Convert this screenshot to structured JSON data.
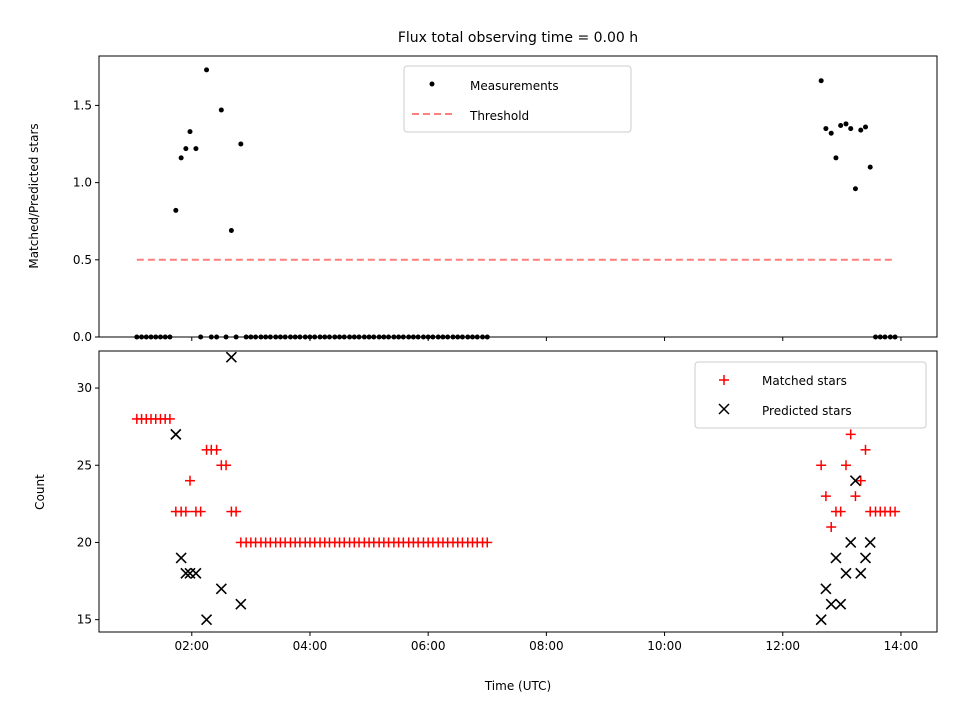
{
  "chart_data": [
    {
      "type": "scatter",
      "title": "Flux total observing time = 0.00 h",
      "xlabel": "",
      "ylabel": "Matched/Predicted stars",
      "xlim": [
        0.43,
        14.61
      ],
      "ylim": [
        0.0,
        1.82
      ],
      "y_ticks": [
        "0.0",
        "0.5",
        "1.0",
        "1.5"
      ],
      "x_ticks": [
        "02:00",
        "04:00",
        "06:00",
        "08:00",
        "10:00",
        "12:00",
        "14:00"
      ],
      "show_x_tick_labels": false,
      "grid": false,
      "legend_position": "upper center",
      "colors": {
        "measurements": "#000000",
        "threshold": "#ff7f7f"
      },
      "series": [
        {
          "name": "Measurements",
          "kind": "points",
          "points": [
            [
              1.07,
              0.0
            ],
            [
              1.15,
              0.0
            ],
            [
              1.23,
              0.0
            ],
            [
              1.31,
              0.0
            ],
            [
              1.39,
              0.0
            ],
            [
              1.47,
              0.0
            ],
            [
              1.55,
              0.0
            ],
            [
              1.63,
              0.0
            ],
            [
              1.73,
              0.82
            ],
            [
              1.82,
              1.16
            ],
            [
              1.9,
              1.22
            ],
            [
              1.97,
              1.33
            ],
            [
              2.07,
              1.22
            ],
            [
              2.15,
              0.0
            ],
            [
              2.25,
              1.73
            ],
            [
              2.33,
              0.0
            ],
            [
              2.42,
              0.0
            ],
            [
              2.5,
              1.47
            ],
            [
              2.58,
              0.0
            ],
            [
              2.67,
              0.69
            ],
            [
              2.75,
              0.0
            ],
            [
              2.83,
              1.25
            ],
            [
              2.92,
              0.0
            ],
            [
              3.0,
              0.0
            ],
            [
              3.08,
              0.0
            ],
            [
              3.17,
              0.0
            ],
            [
              3.25,
              0.0
            ],
            [
              3.33,
              0.0
            ],
            [
              3.42,
              0.0
            ],
            [
              3.5,
              0.0
            ],
            [
              3.58,
              0.0
            ],
            [
              3.67,
              0.0
            ],
            [
              3.75,
              0.0
            ],
            [
              3.83,
              0.0
            ],
            [
              3.92,
              0.0
            ],
            [
              4.0,
              0.0
            ],
            [
              4.08,
              0.0
            ],
            [
              4.17,
              0.0
            ],
            [
              4.25,
              0.0
            ],
            [
              4.33,
              0.0
            ],
            [
              4.42,
              0.0
            ],
            [
              4.5,
              0.0
            ],
            [
              4.58,
              0.0
            ],
            [
              4.67,
              0.0
            ],
            [
              4.75,
              0.0
            ],
            [
              4.83,
              0.0
            ],
            [
              4.92,
              0.0
            ],
            [
              5.0,
              0.0
            ],
            [
              5.08,
              0.0
            ],
            [
              5.17,
              0.0
            ],
            [
              5.25,
              0.0
            ],
            [
              5.33,
              0.0
            ],
            [
              5.42,
              0.0
            ],
            [
              5.5,
              0.0
            ],
            [
              5.58,
              0.0
            ],
            [
              5.67,
              0.0
            ],
            [
              5.75,
              0.0
            ],
            [
              5.83,
              0.0
            ],
            [
              5.92,
              0.0
            ],
            [
              6.0,
              0.0
            ],
            [
              6.08,
              0.0
            ],
            [
              6.17,
              0.0
            ],
            [
              6.25,
              0.0
            ],
            [
              6.33,
              0.0
            ],
            [
              6.42,
              0.0
            ],
            [
              6.5,
              0.0
            ],
            [
              6.58,
              0.0
            ],
            [
              6.67,
              0.0
            ],
            [
              6.75,
              0.0
            ],
            [
              6.83,
              0.0
            ],
            [
              6.92,
              0.0
            ],
            [
              7.0,
              0.0
            ],
            [
              12.65,
              1.66
            ],
            [
              12.73,
              1.35
            ],
            [
              12.82,
              1.32
            ],
            [
              12.9,
              1.16
            ],
            [
              12.98,
              1.37
            ],
            [
              13.07,
              1.38
            ],
            [
              13.15,
              1.35
            ],
            [
              13.23,
              0.96
            ],
            [
              13.32,
              1.34
            ],
            [
              13.4,
              1.36
            ],
            [
              13.48,
              1.1
            ],
            [
              13.57,
              0.0
            ],
            [
              13.65,
              0.0
            ],
            [
              13.73,
              0.0
            ],
            [
              13.82,
              0.0
            ],
            [
              13.9,
              0.0
            ]
          ]
        },
        {
          "name": "Threshold",
          "kind": "dashed-line",
          "points": [
            [
              1.07,
              0.5
            ],
            [
              13.9,
              0.5
            ]
          ]
        }
      ]
    },
    {
      "type": "scatter",
      "title": "",
      "xlabel": "Time (UTC)",
      "ylabel": "Count",
      "xlim": [
        0.43,
        14.61
      ],
      "ylim": [
        14.2,
        32.4
      ],
      "y_ticks": [
        "15",
        "20",
        "25",
        "30"
      ],
      "x_ticks": [
        "02:00",
        "04:00",
        "06:00",
        "08:00",
        "10:00",
        "12:00",
        "14:00"
      ],
      "show_x_tick_labels": true,
      "grid": false,
      "legend_position": "upper right",
      "colors": {
        "matched": "#ff0000",
        "predicted": "#000000"
      },
      "series": [
        {
          "name": "Matched stars",
          "kind": "plus",
          "points": [
            [
              1.07,
              28
            ],
            [
              1.15,
              28
            ],
            [
              1.23,
              28
            ],
            [
              1.31,
              28
            ],
            [
              1.39,
              28
            ],
            [
              1.47,
              28
            ],
            [
              1.55,
              28
            ],
            [
              1.63,
              28
            ],
            [
              1.73,
              22
            ],
            [
              1.82,
              22
            ],
            [
              1.9,
              22
            ],
            [
              1.97,
              24
            ],
            [
              2.07,
              22
            ],
            [
              2.15,
              22
            ],
            [
              2.25,
              26
            ],
            [
              2.33,
              26
            ],
            [
              2.42,
              26
            ],
            [
              2.5,
              25
            ],
            [
              2.58,
              25
            ],
            [
              2.67,
              22
            ],
            [
              2.75,
              22
            ],
            [
              2.83,
              20
            ],
            [
              2.92,
              20
            ],
            [
              3.0,
              20
            ],
            [
              3.08,
              20
            ],
            [
              3.17,
              20
            ],
            [
              3.25,
              20
            ],
            [
              3.33,
              20
            ],
            [
              3.42,
              20
            ],
            [
              3.5,
              20
            ],
            [
              3.58,
              20
            ],
            [
              3.67,
              20
            ],
            [
              3.75,
              20
            ],
            [
              3.83,
              20
            ],
            [
              3.92,
              20
            ],
            [
              4.0,
              20
            ],
            [
              4.08,
              20
            ],
            [
              4.17,
              20
            ],
            [
              4.25,
              20
            ],
            [
              4.33,
              20
            ],
            [
              4.42,
              20
            ],
            [
              4.5,
              20
            ],
            [
              4.58,
              20
            ],
            [
              4.67,
              20
            ],
            [
              4.75,
              20
            ],
            [
              4.83,
              20
            ],
            [
              4.92,
              20
            ],
            [
              5.0,
              20
            ],
            [
              5.08,
              20
            ],
            [
              5.17,
              20
            ],
            [
              5.25,
              20
            ],
            [
              5.33,
              20
            ],
            [
              5.42,
              20
            ],
            [
              5.5,
              20
            ],
            [
              5.58,
              20
            ],
            [
              5.67,
              20
            ],
            [
              5.75,
              20
            ],
            [
              5.83,
              20
            ],
            [
              5.92,
              20
            ],
            [
              6.0,
              20
            ],
            [
              6.08,
              20
            ],
            [
              6.17,
              20
            ],
            [
              6.25,
              20
            ],
            [
              6.33,
              20
            ],
            [
              6.42,
              20
            ],
            [
              6.5,
              20
            ],
            [
              6.58,
              20
            ],
            [
              6.67,
              20
            ],
            [
              6.75,
              20
            ],
            [
              6.83,
              20
            ],
            [
              6.92,
              20
            ],
            [
              7.0,
              20
            ],
            [
              12.65,
              25
            ],
            [
              12.73,
              23
            ],
            [
              12.82,
              21
            ],
            [
              12.9,
              22
            ],
            [
              12.98,
              22
            ],
            [
              13.07,
              25
            ],
            [
              13.15,
              27
            ],
            [
              13.23,
              23
            ],
            [
              13.32,
              24
            ],
            [
              13.4,
              26
            ],
            [
              13.48,
              22
            ],
            [
              13.57,
              22
            ],
            [
              13.65,
              22
            ],
            [
              13.73,
              22
            ],
            [
              13.82,
              22
            ],
            [
              13.9,
              22
            ]
          ]
        },
        {
          "name": "Predicted stars",
          "kind": "x",
          "points": [
            [
              1.73,
              27
            ],
            [
              1.82,
              19
            ],
            [
              1.9,
              18
            ],
            [
              1.97,
              18
            ],
            [
              2.07,
              18
            ],
            [
              2.25,
              15
            ],
            [
              2.5,
              17
            ],
            [
              2.67,
              32
            ],
            [
              2.83,
              16
            ],
            [
              12.65,
              15
            ],
            [
              12.73,
              17
            ],
            [
              12.82,
              16
            ],
            [
              12.9,
              19
            ],
            [
              12.98,
              16
            ],
            [
              13.07,
              18
            ],
            [
              13.15,
              20
            ],
            [
              13.23,
              24
            ],
            [
              13.32,
              18
            ],
            [
              13.4,
              19
            ],
            [
              13.48,
              20
            ]
          ]
        }
      ]
    }
  ]
}
